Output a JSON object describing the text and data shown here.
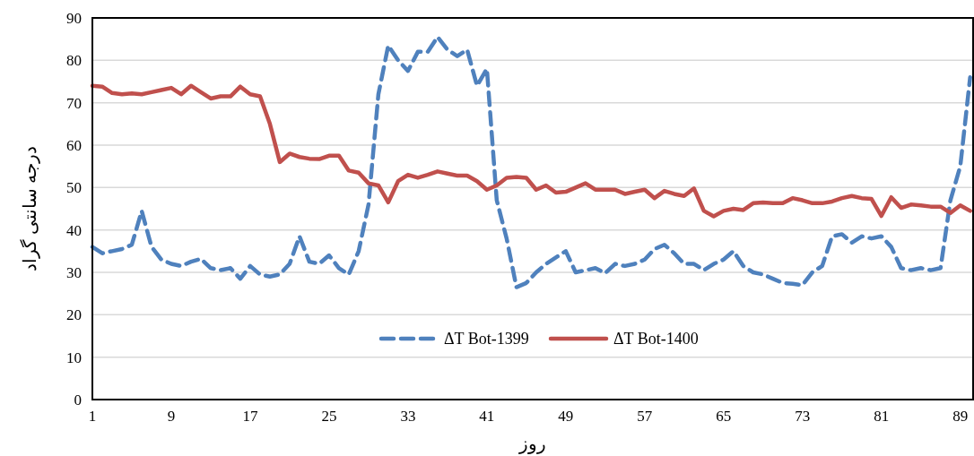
{
  "chart_data": {
    "type": "line",
    "xlabel": "روز",
    "ylabel": "درجه سانتی گراد",
    "x": [
      1,
      2,
      3,
      4,
      5,
      6,
      7,
      8,
      9,
      10,
      11,
      12,
      13,
      14,
      15,
      16,
      17,
      18,
      19,
      20,
      21,
      22,
      23,
      24,
      25,
      26,
      27,
      28,
      29,
      30,
      31,
      32,
      33,
      34,
      35,
      36,
      37,
      38,
      39,
      40,
      41,
      42,
      43,
      44,
      45,
      46,
      47,
      48,
      49,
      50,
      51,
      52,
      53,
      54,
      55,
      56,
      57,
      58,
      59,
      60,
      61,
      62,
      63,
      64,
      65,
      66,
      67,
      68,
      69,
      70,
      71,
      72,
      73,
      74,
      75,
      76,
      77,
      78,
      79,
      80,
      81,
      82,
      83,
      84,
      85,
      86,
      87,
      88,
      89,
      90
    ],
    "xlim": [
      1,
      90.3
    ],
    "xticks": [
      1,
      9,
      17,
      25,
      33,
      41,
      49,
      57,
      65,
      73,
      81,
      89
    ],
    "ylim": [
      0,
      90
    ],
    "yticks": [
      0,
      10,
      20,
      30,
      40,
      50,
      60,
      70,
      80,
      90
    ],
    "grid": "y",
    "legend": "bottom",
    "marker": "none",
    "series": [
      {
        "name": "ΔT Bot-1399",
        "color": "#4f81bd",
        "line_style": "dashed",
        "values": [
          36,
          34.5,
          35,
          35.5,
          36.5,
          44.5,
          36,
          33,
          32,
          31.5,
          32.5,
          33.2,
          31,
          30.5,
          31,
          28.5,
          31.5,
          29.5,
          29,
          29.5,
          32,
          38.5,
          32.5,
          32,
          34,
          31,
          29.5,
          35,
          46,
          72,
          83.5,
          80,
          77.5,
          82,
          82,
          85.5,
          82.5,
          81,
          82.5,
          74,
          78,
          47,
          38,
          26.5,
          27.5,
          30,
          32,
          33.5,
          35,
          30,
          30.5,
          31,
          29.8,
          32,
          31.5,
          32,
          33,
          35.5,
          36.5,
          34.5,
          32,
          32,
          30.5,
          32,
          33,
          35,
          31.5,
          30,
          29.5,
          28.5,
          27.5,
          27.3,
          27,
          30,
          31.5,
          38.5,
          39,
          37,
          38.5,
          38,
          38.5,
          36,
          31,
          30.5,
          31,
          30.5,
          31,
          47,
          55,
          76
        ]
      },
      {
        "name": "ΔT Bot-1400",
        "color": "#c0504d",
        "line_style": "solid",
        "values": [
          74,
          73.8,
          72.3,
          72,
          72.2,
          72,
          72.5,
          73,
          73.5,
          72,
          74,
          72.5,
          71,
          71.5,
          71.5,
          73.8,
          72,
          71.5,
          65,
          56,
          58,
          57.2,
          56.8,
          56.7,
          57.5,
          57.5,
          54,
          53.5,
          51,
          50.5,
          46.5,
          51.5,
          53,
          52.3,
          53,
          53.8,
          53.3,
          52.8,
          52.8,
          51.5,
          49.5,
          50.5,
          52.3,
          52.5,
          52.3,
          49.5,
          50.5,
          48.8,
          49,
          50,
          51,
          49.5,
          49.5,
          49.5,
          48.5,
          49,
          49.5,
          47.5,
          49.2,
          48.5,
          48,
          49.8,
          44.5,
          43.2,
          44.5,
          45,
          44.7,
          46.3,
          46.5,
          46.3,
          46.3,
          47.5,
          47,
          46.3,
          46.3,
          46.7,
          47.5,
          48,
          47.5,
          47.3,
          43.3,
          47.7,
          45.2,
          46,
          45.8,
          45.5,
          45.5,
          44,
          45.8,
          44.5
        ]
      }
    ]
  }
}
